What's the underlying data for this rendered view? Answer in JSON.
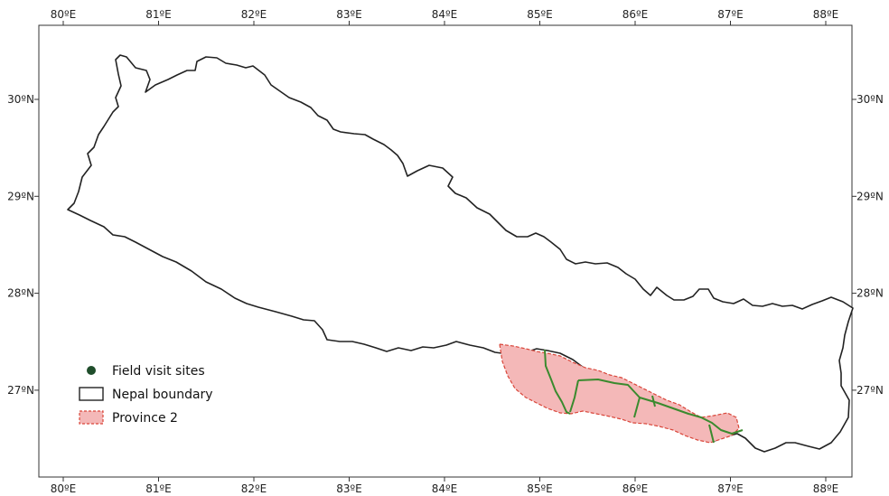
{
  "map": {
    "x_ticks": [
      "80ºE",
      "81ºE",
      "82ºE",
      "83ºE",
      "84ºE",
      "85ºE",
      "86ºE",
      "87ºE",
      "88ºE"
    ],
    "y_ticks": [
      "30ºN",
      "29ºN",
      "28ºN",
      "27ºN"
    ],
    "legend": [
      {
        "label": "Field visit sites",
        "symbol": "dot",
        "color": "#1f4d2b"
      },
      {
        "label": "Nepal boundary",
        "symbol": "outline",
        "color": "#222222"
      },
      {
        "label": "Province 2",
        "symbol": "dashed-fill",
        "color": "#f4b8b8",
        "stroke": "#d9463a"
      }
    ],
    "colors": {
      "boundary": "#222222",
      "province_fill": "#f4b8b8",
      "province_stroke": "#d9463a",
      "route": "#3a8a2e"
    }
  }
}
